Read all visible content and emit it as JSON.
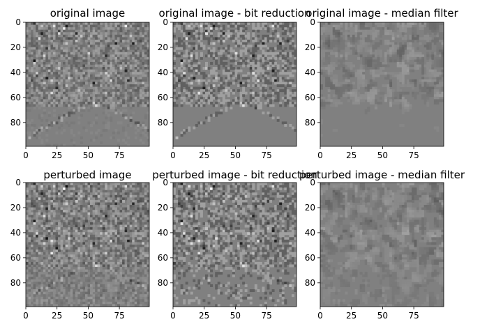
{
  "panels": [
    {
      "title": "original image",
      "texture": "original",
      "filter": "none"
    },
    {
      "title": "original image - bit reduction",
      "texture": "original",
      "filter": "bit"
    },
    {
      "title": "original image - median filter",
      "texture": "original",
      "filter": "median"
    },
    {
      "title": "perturbed image",
      "texture": "perturbed",
      "filter": "none"
    },
    {
      "title": "perturbed image - bit reduction",
      "texture": "perturbed",
      "filter": "bit"
    },
    {
      "title": "perturbed image - median filter",
      "texture": "perturbed",
      "filter": "median"
    }
  ],
  "axes": {
    "x_ticks": [
      "0",
      "25",
      "50",
      "75"
    ],
    "y_ticks": [
      "0",
      "20",
      "40",
      "60",
      "80"
    ],
    "xlim": [
      0,
      99
    ],
    "ylim": [
      0,
      99
    ]
  },
  "colors": {
    "background": "#ffffff",
    "image_gray": "#808080",
    "axis": "#000000"
  }
}
